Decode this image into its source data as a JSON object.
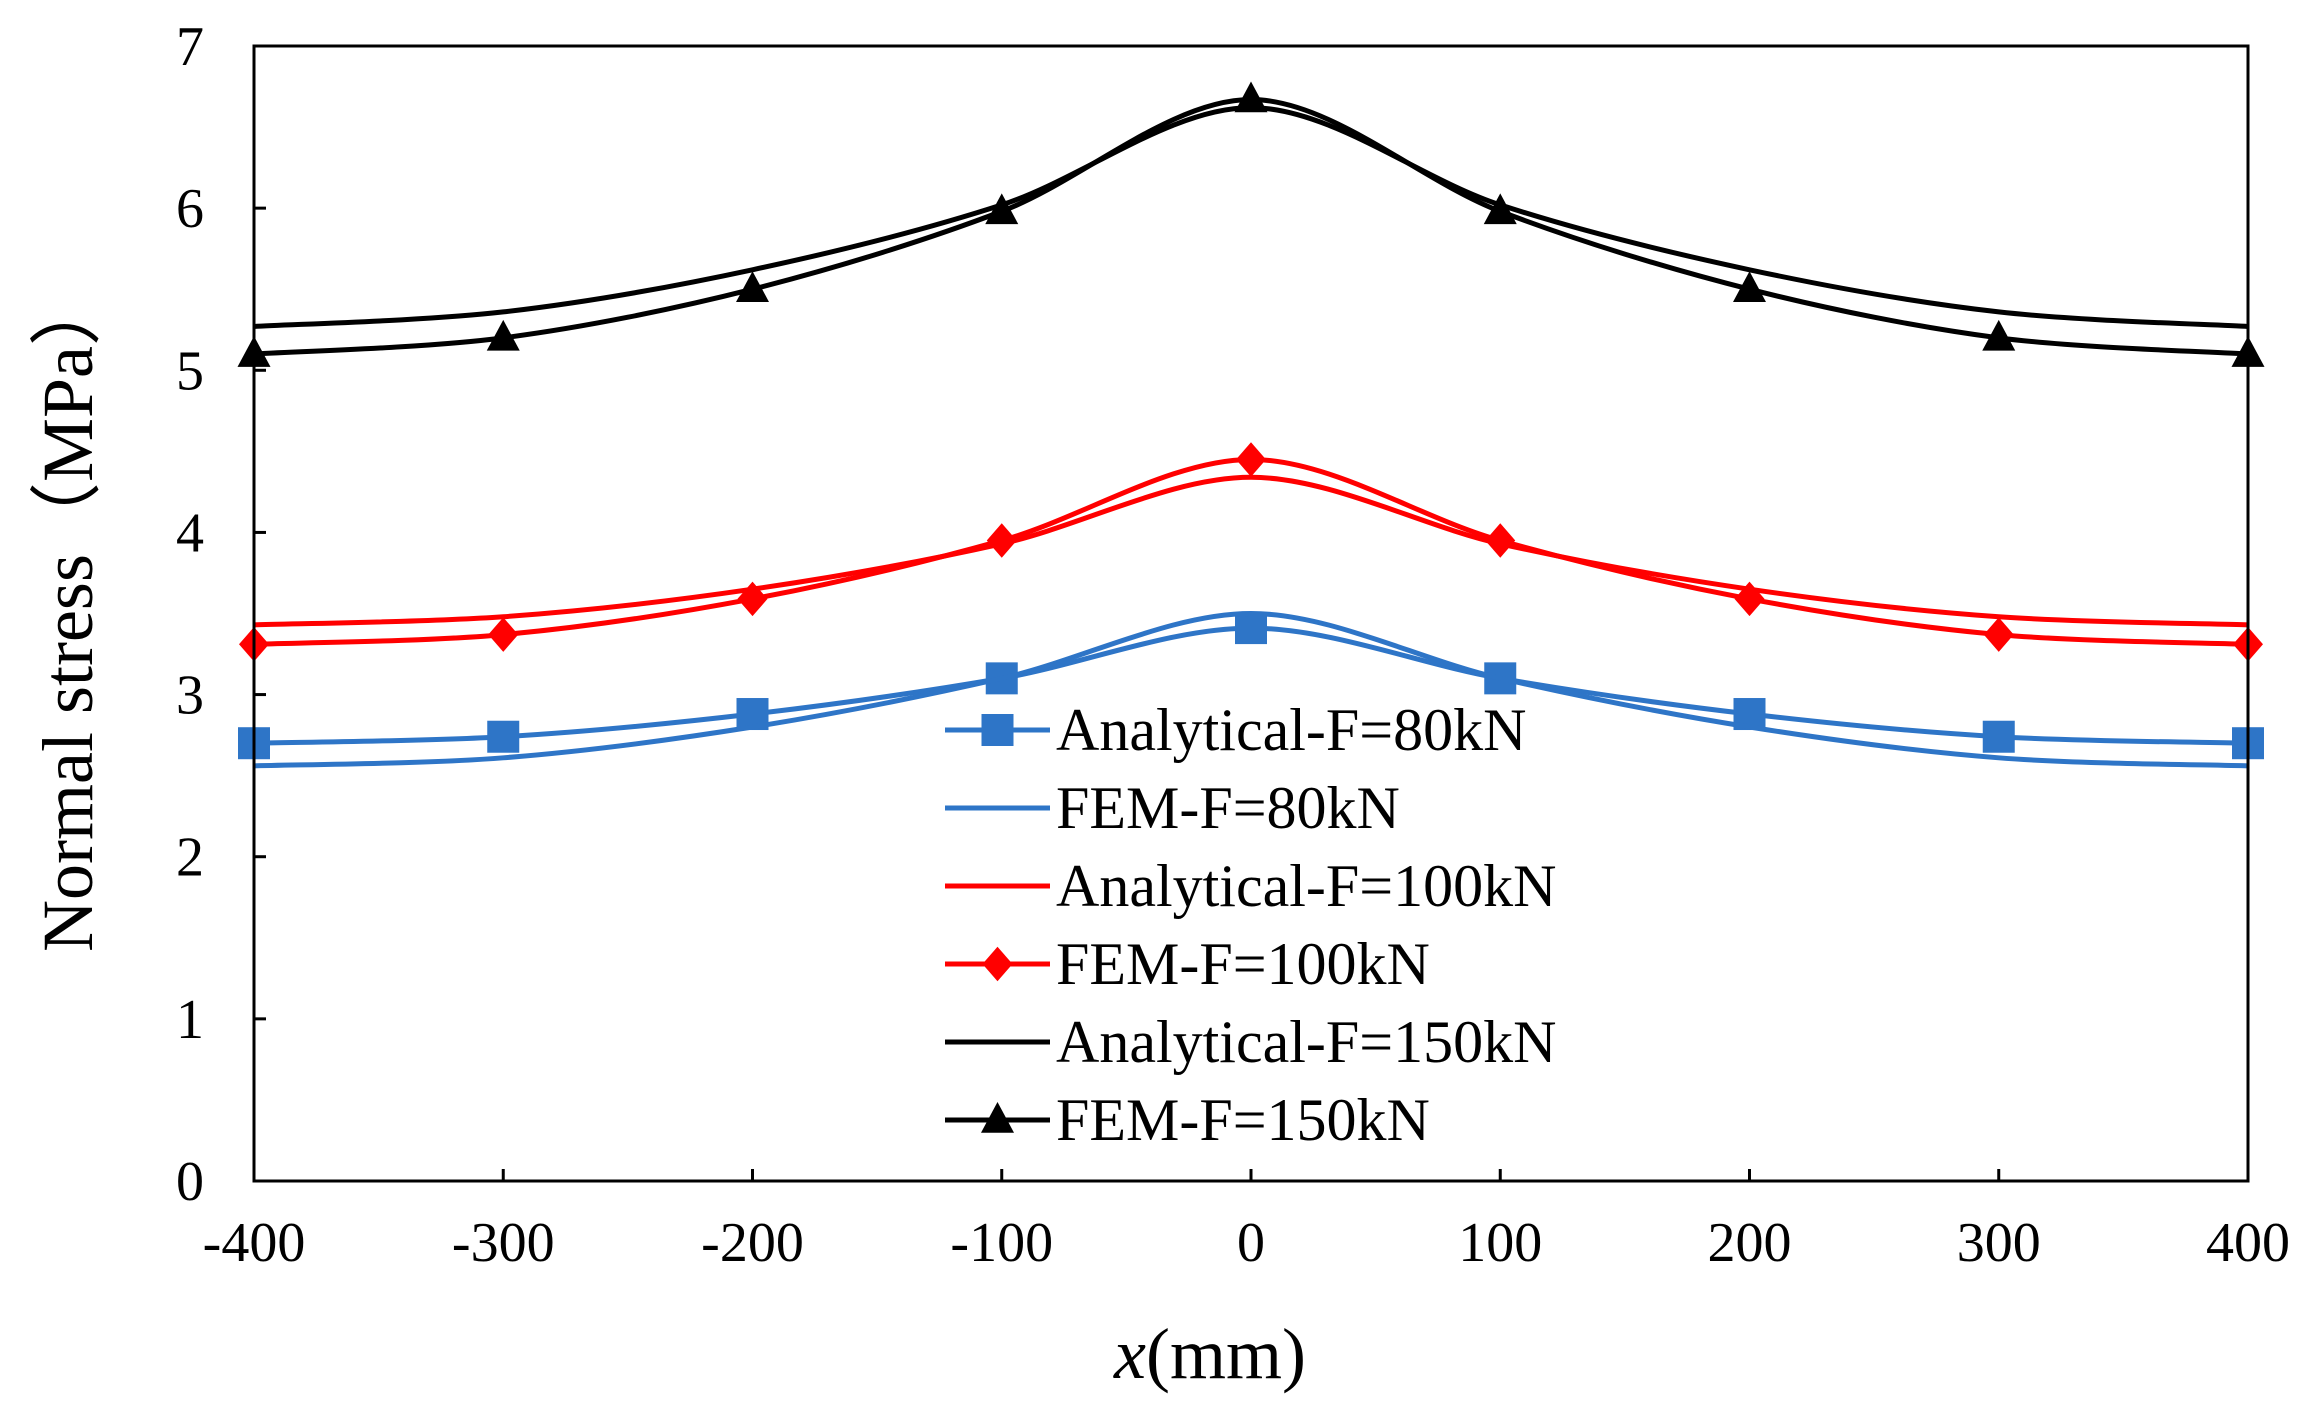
{
  "chart_data": {
    "type": "line",
    "title": "",
    "xlabel_italic": "x",
    "xlabel_rest": "(mm)",
    "ylabel": "Normal stress（MPa）",
    "xlim": [
      -400,
      400
    ],
    "ylim": [
      0,
      7
    ],
    "x_ticks": [
      "-400",
      "-300",
      "-200",
      "-100",
      "0",
      "100",
      "200",
      "300",
      "400"
    ],
    "y_ticks": [
      "0",
      "1",
      "2",
      "3",
      "4",
      "5",
      "6",
      "7"
    ],
    "grid": false,
    "legend_position": "center",
    "x": [
      -400,
      -300,
      -200,
      -100,
      0,
      100,
      200,
      300,
      400
    ],
    "series": [
      {
        "name": "Analytical-F=80kN",
        "color": "#2e75c7",
        "marker": "square",
        "values": [
          2.7,
          2.74,
          2.88,
          3.1,
          3.41,
          3.1,
          2.88,
          2.74,
          2.7
        ]
      },
      {
        "name": "FEM-F=80kN",
        "color": "#2e75c7",
        "marker": "none",
        "values": [
          2.56,
          2.61,
          2.8,
          3.1,
          3.5,
          3.1,
          2.8,
          2.61,
          2.56
        ]
      },
      {
        "name": "Analytical-F=100kN",
        "color": "#ff0000",
        "marker": "none",
        "values": [
          3.43,
          3.48,
          3.65,
          3.93,
          4.34,
          3.93,
          3.65,
          3.48,
          3.43
        ]
      },
      {
        "name": "FEM-F=100kN",
        "color": "#ff0000",
        "marker": "diamond",
        "values": [
          3.31,
          3.37,
          3.59,
          3.95,
          4.45,
          3.95,
          3.59,
          3.37,
          3.31
        ]
      },
      {
        "name": "Analytical-F=150kN",
        "color": "#000000",
        "marker": "none",
        "values": [
          5.27,
          5.36,
          5.62,
          6.02,
          6.62,
          6.02,
          5.62,
          5.36,
          5.27
        ]
      },
      {
        "name": "FEM-F=150kN",
        "color": "#000000",
        "marker": "triangle",
        "values": [
          5.1,
          5.2,
          5.5,
          5.98,
          6.67,
          5.98,
          5.5,
          5.2,
          5.1
        ]
      }
    ]
  }
}
